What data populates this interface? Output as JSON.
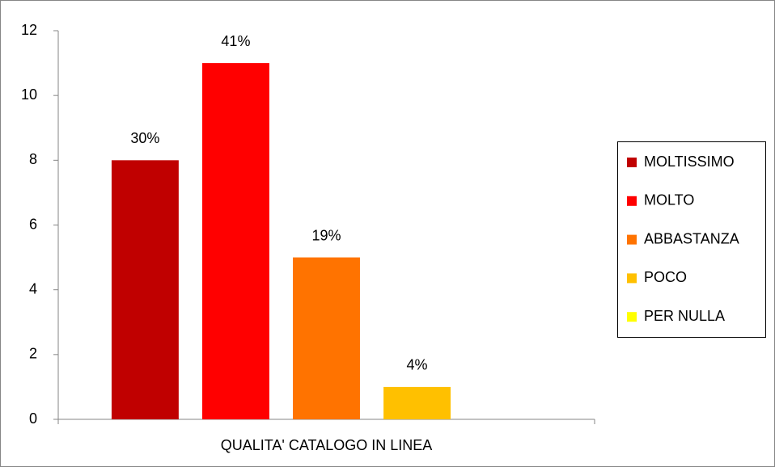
{
  "chart_data": {
    "type": "bar",
    "categories": [
      "QUALITA' CATALOGO IN LINEA"
    ],
    "series": [
      {
        "name": "MOLTISSIMO",
        "color": "#c00000",
        "values": [
          8
        ],
        "value_labels": [
          "30%"
        ]
      },
      {
        "name": "MOLTO",
        "color": "#ff0000",
        "values": [
          11
        ],
        "value_labels": [
          "41%"
        ]
      },
      {
        "name": "ABBASTANZA",
        "color": "#ff7300",
        "values": [
          5
        ],
        "value_labels": [
          "19%"
        ]
      },
      {
        "name": "POCO",
        "color": "#ffc000",
        "values": [
          1
        ],
        "value_labels": [
          "4%"
        ]
      },
      {
        "name": "PER NULLA",
        "color": "#ffff00",
        "values": [
          0
        ]
      }
    ],
    "ylim": [
      0,
      12
    ],
    "yticks": [
      0,
      2,
      4,
      6,
      8,
      10,
      12
    ],
    "grid": false,
    "legend": "right"
  }
}
